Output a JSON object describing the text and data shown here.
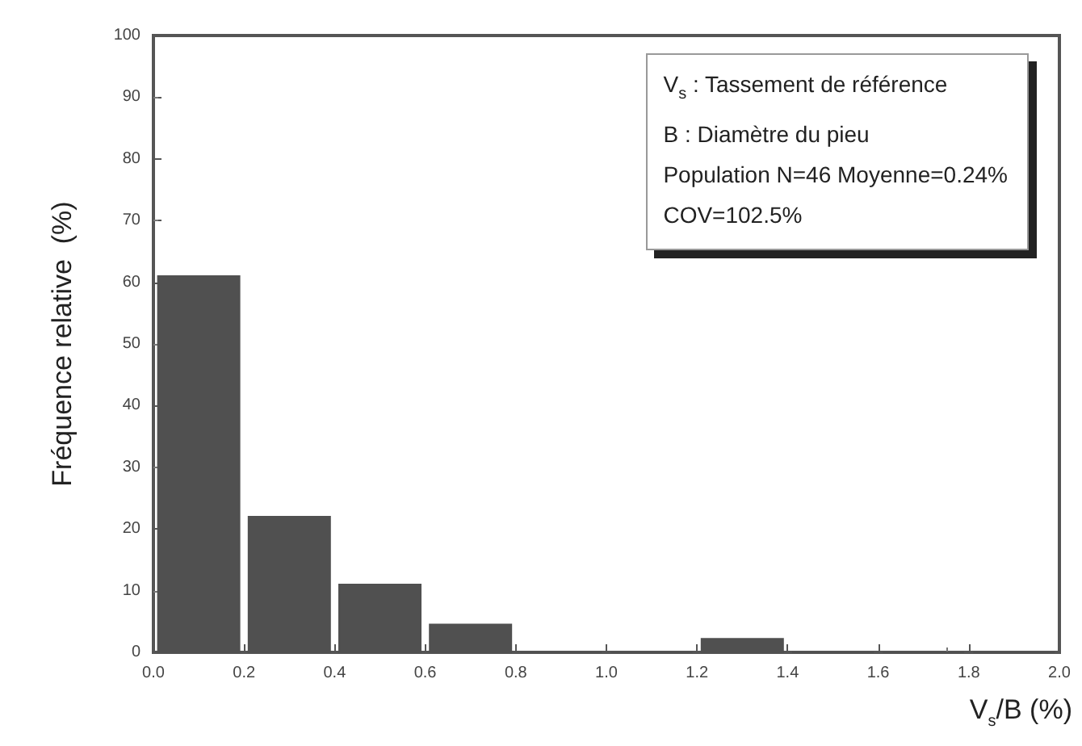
{
  "chart_data": {
    "type": "histogram",
    "xlabel": "V$_{s}$/B (%)",
    "ylabel": "Fréquence relative  (%)",
    "bins": [
      0.0,
      0.2,
      0.4,
      0.6,
      0.8,
      1.0,
      1.2,
      1.4,
      1.6,
      1.8,
      2.0
    ],
    "values": [
      61,
      22,
      11,
      4.5,
      0,
      0,
      2.2,
      0,
      0,
      0
    ],
    "color": "#505050",
    "xlim": [
      0,
      2.0
    ],
    "xticks": [
      {
        "value": 0,
        "label": "0.0"
      },
      {
        "value": 0.2,
        "label": "0.2"
      },
      {
        "value": 0.4,
        "label": "0.4"
      },
      {
        "value": 0.6,
        "label": "0.6"
      },
      {
        "value": 0.8,
        "label": "0.8"
      },
      {
        "value": 1.0,
        "label": "1.0"
      },
      {
        "value": 1.2,
        "label": "1.2"
      },
      {
        "value": 1.4,
        "label": "1.4"
      },
      {
        "value": 1.6,
        "label": "1.6"
      },
      {
        "value": 1.8,
        "label": "1.8"
      },
      {
        "value": 2.0,
        "label": "2.0"
      }
    ],
    "ylim": [
      0,
      100
    ],
    "yticks": [
      0,
      10,
      20,
      30,
      40,
      50,
      60,
      70,
      80,
      90,
      100
    ],
    "grid": false,
    "annotations": [
      "V$_{s}$ : Tassement de référence",
      "B    : Diamètre du pieu",
      "Population N=46 Moyenne=0.24%",
      "COV=102.5%"
    ]
  }
}
